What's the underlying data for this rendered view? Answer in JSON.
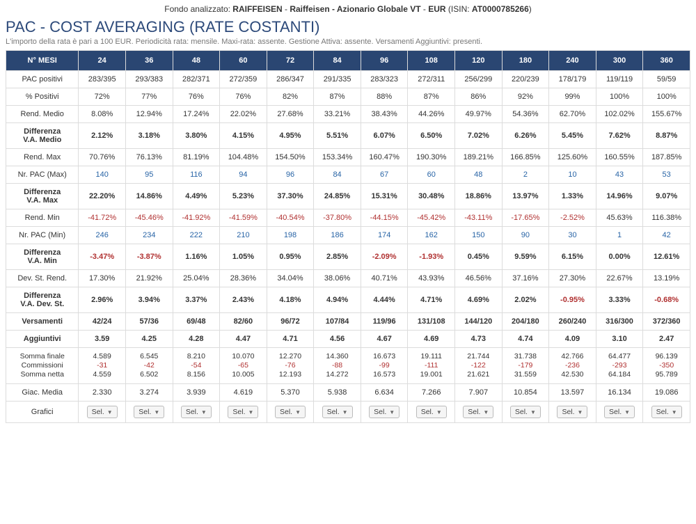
{
  "header": {
    "prefix": "Fondo analizzato: ",
    "brand": "RAIFFEISEN",
    "sep1": " - ",
    "name": "Raiffeisen - Azionario Globale VT",
    "sep2": " - ",
    "currency": "EUR",
    "isin_prefix": " (ISIN: ",
    "isin": "AT0000785266",
    "isin_suffix": ")"
  },
  "title": "PAC - COST AVERAGING (RATE COSTANTI)",
  "subtitle": "L'importo della rata è pari a 100 EUR. Periodicità rata: mensile. Maxi-rata: assente. Gestione Attiva: assente. Versamenti Aggiuntivi: presenti.",
  "colhead": "N° MESI",
  "months": [
    "24",
    "36",
    "48",
    "60",
    "72",
    "84",
    "96",
    "108",
    "120",
    "180",
    "240",
    "300",
    "360"
  ],
  "rows": [
    {
      "label": "PAC positivi",
      "bold": false,
      "data": [
        "283/395",
        "293/383",
        "282/371",
        "272/359",
        "286/347",
        "291/335",
        "283/323",
        "272/311",
        "256/299",
        "220/239",
        "178/179",
        "119/119",
        "59/59"
      ]
    },
    {
      "label": "% Positivi",
      "bold": false,
      "data": [
        "72%",
        "77%",
        "76%",
        "76%",
        "82%",
        "87%",
        "88%",
        "87%",
        "86%",
        "92%",
        "99%",
        "100%",
        "100%"
      ]
    },
    {
      "label": "Rend. Medio",
      "bold": false,
      "data": [
        "8.08%",
        "12.94%",
        "17.24%",
        "22.02%",
        "27.68%",
        "33.21%",
        "38.43%",
        "44.26%",
        "49.97%",
        "54.36%",
        "62.70%",
        "102.02%",
        "155.67%"
      ]
    },
    {
      "label": "Differenza V.A. Medio",
      "bold": true,
      "data": [
        "2.12%",
        "3.18%",
        "3.80%",
        "4.15%",
        "4.95%",
        "5.51%",
        "6.07%",
        "6.50%",
        "7.02%",
        "6.26%",
        "5.45%",
        "7.62%",
        "8.87%"
      ]
    },
    {
      "label": "Rend. Max",
      "bold": false,
      "data": [
        "70.76%",
        "76.13%",
        "81.19%",
        "104.48%",
        "154.50%",
        "153.34%",
        "160.47%",
        "190.30%",
        "189.21%",
        "166.85%",
        "125.60%",
        "160.55%",
        "187.85%"
      ]
    },
    {
      "label": "Nr. PAC (Max)",
      "bold": false,
      "link": true,
      "data": [
        "140",
        "95",
        "116",
        "94",
        "96",
        "84",
        "67",
        "60",
        "48",
        "2",
        "10",
        "43",
        "53"
      ]
    },
    {
      "label": "Differenza V.A. Max",
      "bold": true,
      "data": [
        "22.20%",
        "14.86%",
        "4.49%",
        "5.23%",
        "37.30%",
        "24.85%",
        "15.31%",
        "30.48%",
        "18.86%",
        "13.97%",
        "1.33%",
        "14.96%",
        "9.07%"
      ]
    },
    {
      "label": "Rend. Min",
      "bold": false,
      "data": [
        "-41.72%",
        "-45.46%",
        "-41.92%",
        "-41.59%",
        "-40.54%",
        "-37.80%",
        "-44.15%",
        "-45.42%",
        "-43.11%",
        "-17.65%",
        "-2.52%",
        "45.63%",
        "116.38%"
      ]
    },
    {
      "label": "Nr. PAC (Min)",
      "bold": false,
      "link": true,
      "data": [
        "246",
        "234",
        "222",
        "210",
        "198",
        "186",
        "174",
        "162",
        "150",
        "90",
        "30",
        "1",
        "42"
      ]
    },
    {
      "label": "Differenza V.A. Min",
      "bold": true,
      "data": [
        "-3.47%",
        "-3.87%",
        "1.16%",
        "1.05%",
        "0.95%",
        "2.85%",
        "-2.09%",
        "-1.93%",
        "0.45%",
        "9.59%",
        "6.15%",
        "0.00%",
        "12.61%"
      ]
    },
    {
      "label": "Dev. St. Rend.",
      "bold": false,
      "data": [
        "17.30%",
        "21.92%",
        "25.04%",
        "28.36%",
        "34.04%",
        "38.06%",
        "40.71%",
        "43.93%",
        "46.56%",
        "37.16%",
        "27.30%",
        "22.67%",
        "13.19%"
      ]
    },
    {
      "label": "Differenza V.A. Dev. St.",
      "bold": true,
      "data": [
        "2.96%",
        "3.94%",
        "3.37%",
        "2.43%",
        "4.18%",
        "4.94%",
        "4.44%",
        "4.71%",
        "4.69%",
        "2.02%",
        "-0.95%",
        "3.33%",
        "-0.68%"
      ]
    },
    {
      "label": "Versamenti",
      "bold": true,
      "data": [
        "42/24",
        "57/36",
        "69/48",
        "82/60",
        "96/72",
        "107/84",
        "119/96",
        "131/108",
        "144/120",
        "204/180",
        "260/240",
        "316/300",
        "372/360"
      ]
    },
    {
      "label": "Aggiuntivi",
      "bold": true,
      "data": [
        "3.59",
        "4.25",
        "4.28",
        "4.47",
        "4.71",
        "4.56",
        "4.67",
        "4.69",
        "4.73",
        "4.74",
        "4.09",
        "3.10",
        "2.47"
      ]
    }
  ],
  "triple": {
    "labels": [
      "Somma finale",
      "Commissioni",
      "Somma netta"
    ],
    "data": [
      [
        "4.589",
        "-31",
        "4.559"
      ],
      [
        "6.545",
        "-42",
        "6.502"
      ],
      [
        "8.210",
        "-54",
        "8.156"
      ],
      [
        "10.070",
        "-65",
        "10.005"
      ],
      [
        "12.270",
        "-76",
        "12.193"
      ],
      [
        "14.360",
        "-88",
        "14.272"
      ],
      [
        "16.673",
        "-99",
        "16.573"
      ],
      [
        "19.111",
        "-111",
        "19.001"
      ],
      [
        "21.744",
        "-122",
        "21.621"
      ],
      [
        "31.738",
        "-179",
        "31.559"
      ],
      [
        "42.766",
        "-236",
        "42.530"
      ],
      [
        "64.477",
        "-293",
        "64.184"
      ],
      [
        "96.139",
        "-350",
        "95.789"
      ]
    ]
  },
  "giac": {
    "label": "Giac. Media",
    "data": [
      "2.330",
      "3.274",
      "3.939",
      "4.619",
      "5.370",
      "5.938",
      "6.634",
      "7.266",
      "7.907",
      "10.854",
      "13.597",
      "16.134",
      "19.086"
    ]
  },
  "grafici": {
    "label": "Grafici",
    "btn": "Sel."
  }
}
